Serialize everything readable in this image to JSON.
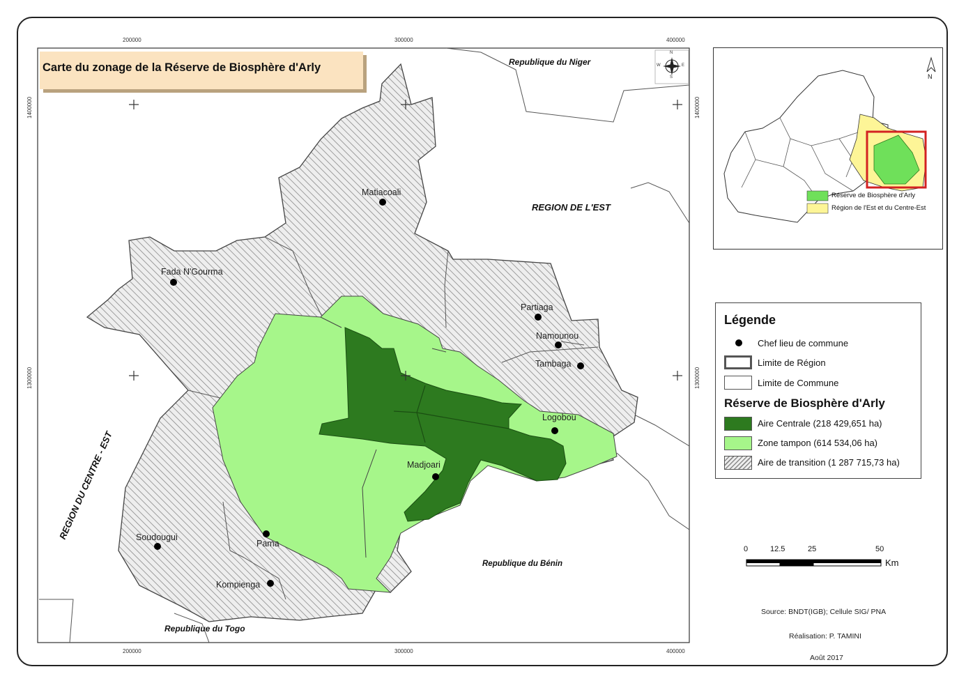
{
  "title": "Carte du zonage de la Réserve de Biosphère d'Arly",
  "colors": {
    "aire_centrale": "#2d7a1f",
    "zone_tampon": "#a6f68a",
    "transition_bg": "#eeeeee",
    "hatch": "#8a8a8a",
    "title_bg": "#fbe3c0",
    "inset_reserve": "#6fe05a",
    "inset_region": "#fdf597",
    "inset_frame": "#d32222"
  },
  "grid": {
    "top_ticks": [
      "200000",
      "300000",
      "400000"
    ],
    "bottom_ticks": [
      "200000",
      "300000",
      "400000"
    ],
    "left_ticks": [
      "1400000",
      "1300000"
    ],
    "right_ticks": [
      "1400000",
      "1300000"
    ]
  },
  "places": [
    {
      "name": "Matiacoali"
    },
    {
      "name": "Fada N'Gourma"
    },
    {
      "name": "Partiaga"
    },
    {
      "name": "Namounou"
    },
    {
      "name": "Tambaga"
    },
    {
      "name": "Logobou"
    },
    {
      "name": "Madjoari"
    },
    {
      "name": "Pama"
    },
    {
      "name": "Soudougui"
    },
    {
      "name": "Kompienga"
    }
  ],
  "borders": {
    "niger": "Republique du Niger",
    "est": "REGION DE L'EST",
    "centre_est": "REGION DU CENTRE - EST",
    "benin": "Republique du Bénin",
    "togo": "Republique du Togo"
  },
  "legend": {
    "title": "Légende",
    "items": [
      {
        "label": "Chef lieu de commune",
        "icon": "black-dot-icon"
      },
      {
        "label": "Limite de Région",
        "icon": "region-boundary-swatch"
      },
      {
        "label": "Limite de Commune",
        "icon": "commune-boundary-swatch"
      }
    ],
    "reserve_title": "Réserve de Biosphère d'Arly",
    "zones": [
      {
        "label": "Aire Centrale (218 429,651  ha)"
      },
      {
        "label": "Zone tampon (614 534,06 ha)"
      },
      {
        "label": "Aire de transition (1 287 715,73 ha)"
      }
    ]
  },
  "inset": {
    "items": [
      {
        "label": "Réserve de Biosphère d'Arly"
      },
      {
        "label": "Région de l'Est et du Centre-Est"
      }
    ],
    "north": "N"
  },
  "compass": {
    "n": "N",
    "s": "S",
    "e": "E",
    "w": "W"
  },
  "scalebar": {
    "labels": [
      "0",
      "12.5",
      "25",
      "50"
    ],
    "unit": "Km"
  },
  "credits": {
    "source": "Source: BNDT(IGB); Cellule SIG/ PNA",
    "author": "Réalisation: P. TAMINI",
    "date": "Août 2017"
  }
}
